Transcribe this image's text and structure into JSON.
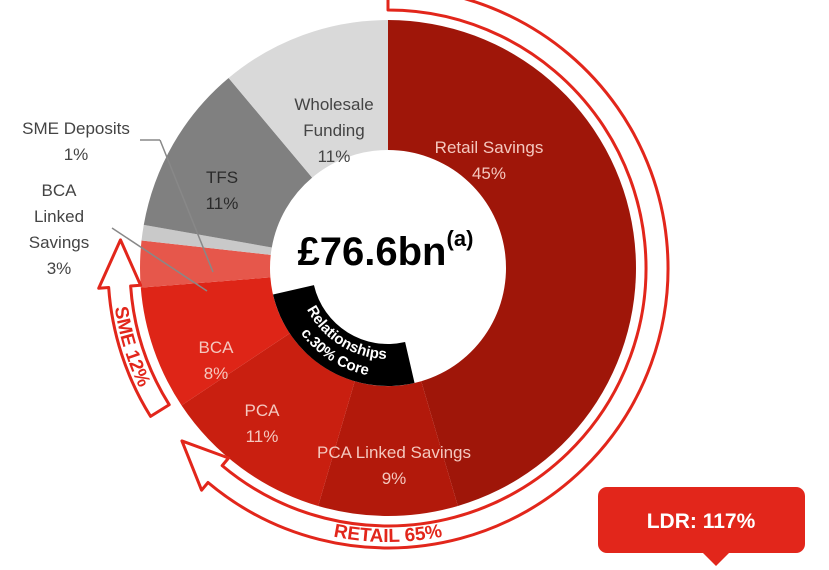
{
  "chart_data": {
    "type": "donut",
    "center_label": "£76.6bn",
    "center_note": "(a)",
    "categories": [
      "Retail Savings",
      "PCA Linked Savings",
      "PCA",
      "BCA",
      "BCA Linked Savings",
      "SME Deposits",
      "TFS",
      "Wholesale Funding"
    ],
    "values": [
      45,
      9,
      11,
      8,
      3,
      1,
      11,
      11
    ],
    "value_labels": [
      "45%",
      "9%",
      "11%",
      "8%",
      "3%",
      "1%",
      "11%",
      "11%"
    ],
    "colors": [
      "#9f1609",
      "#b2190b",
      "#c91f10",
      "#de2517",
      "#e6574b",
      "#c9c9c9",
      "#808080",
      "#d9d9d9"
    ],
    "core_relationships": [
      "c.30% Core",
      "Relationships"
    ],
    "retail_bracket": "RETAIL 65%",
    "sme_bracket": "SME 12%",
    "ldr": "LDR: 117%"
  }
}
